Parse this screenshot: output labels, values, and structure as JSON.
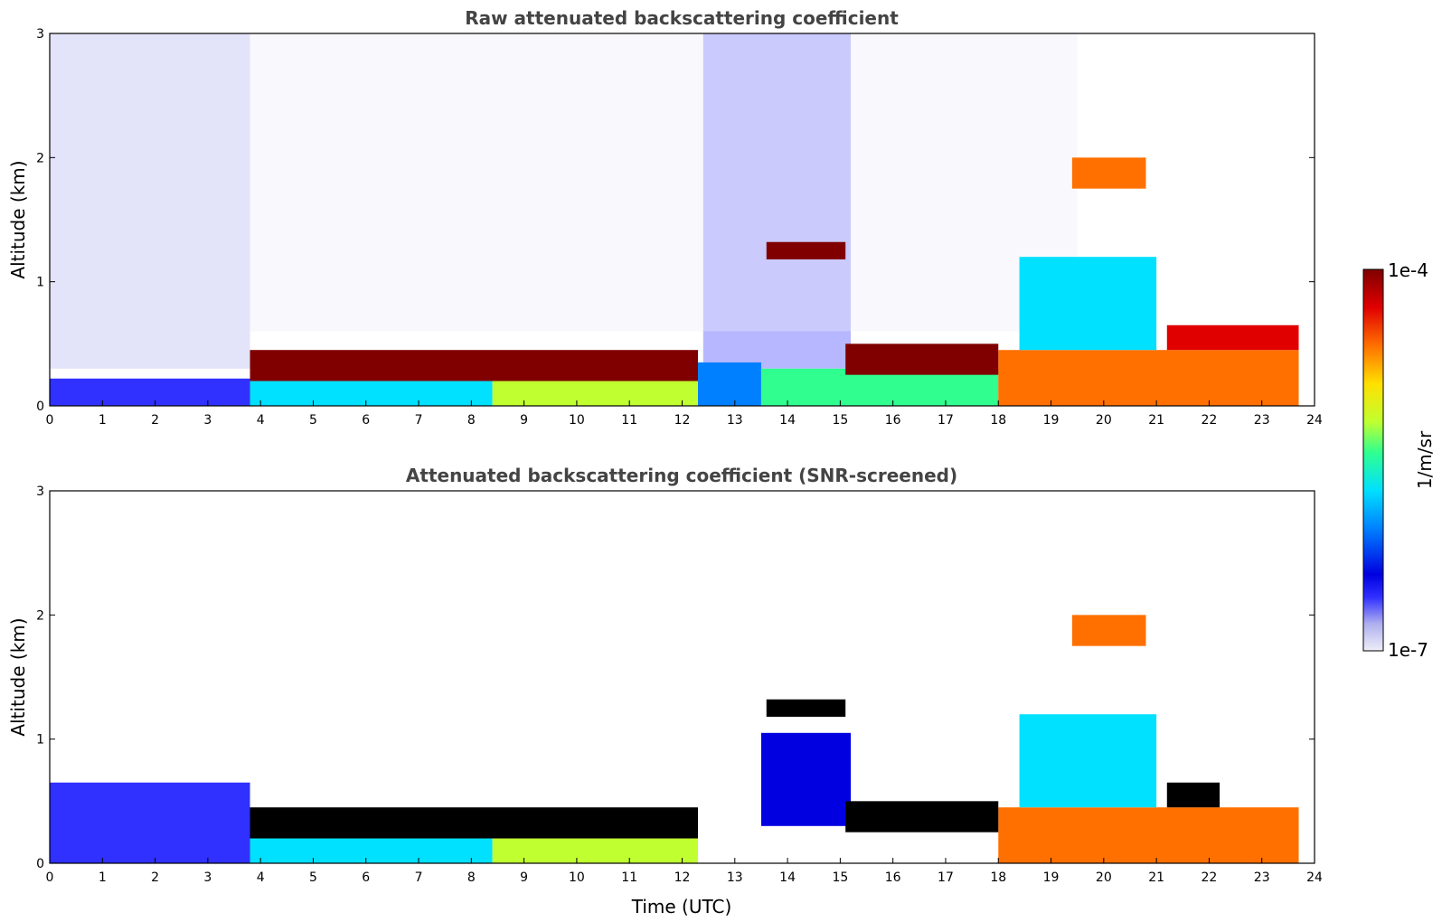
{
  "chart_data": [
    {
      "type": "heatmap",
      "title": "Raw attenuated backscattering coefficient",
      "xlabel": "",
      "ylabel": "Altitude (km)",
      "xlim": [
        0,
        24
      ],
      "ylim": [
        0,
        3
      ],
      "xticks": [
        "0",
        "1",
        "2",
        "3",
        "4",
        "5",
        "6",
        "7",
        "8",
        "9",
        "10",
        "11",
        "12",
        "13",
        "14",
        "15",
        "16",
        "17",
        "18",
        "19",
        "20",
        "21",
        "22",
        "23",
        "24"
      ],
      "yticks": [
        "0",
        "1",
        "2",
        "3"
      ],
      "features": [
        {
          "name": "noise",
          "t_start": 0,
          "t_end": 3.8,
          "alt_low": 0.3,
          "alt_high": 3.0,
          "value": 2e-07
        },
        {
          "name": "noise",
          "t_start": 12.4,
          "t_end": 15.2,
          "alt_low": 0.3,
          "alt_high": 3.0,
          "value": 3e-07
        },
        {
          "name": "noise",
          "t_start": 3.8,
          "t_end": 19.5,
          "alt_low": 0.6,
          "alt_high": 3.0,
          "value": 5e-08
        },
        {
          "name": "aerosol_layer",
          "t_start": 0,
          "t_end": 3.8,
          "alt_low": 0.0,
          "alt_high": 0.22,
          "value": 4e-07
        },
        {
          "name": "aerosol_layer",
          "t_start": 3.8,
          "t_end": 8.4,
          "alt_low": 0.0,
          "alt_high": 0.2,
          "value": 2e-06
        },
        {
          "name": "aerosol_layer",
          "t_start": 8.4,
          "t_end": 12.3,
          "alt_low": 0.0,
          "alt_high": 0.35,
          "value": 1e-05
        },
        {
          "name": "aerosol_layer",
          "t_start": 12.3,
          "t_end": 13.5,
          "alt_low": 0.0,
          "alt_high": 0.35,
          "value": 1.5e-06
        },
        {
          "name": "aerosol_layer",
          "t_start": 13.5,
          "t_end": 18.0,
          "alt_low": 0.0,
          "alt_high": 0.3,
          "value": 4e-06
        },
        {
          "name": "aerosol_layer",
          "t_start": 18.0,
          "t_end": 23.7,
          "alt_low": 0.0,
          "alt_high": 0.45,
          "value": 3e-05
        },
        {
          "name": "boundary_layer_top",
          "t_start": 3.8,
          "t_end": 12.3,
          "alt_low": 0.2,
          "alt_high": 0.45,
          "value": 0.0001
        },
        {
          "name": "boundary_layer_top",
          "t_start": 15.1,
          "t_end": 18.0,
          "alt_low": 0.25,
          "alt_high": 0.5,
          "value": 0.0001
        },
        {
          "name": "boundary_layer_top",
          "t_start": 21.2,
          "t_end": 23.7,
          "alt_low": 0.45,
          "alt_high": 0.65,
          "value": 6e-05
        },
        {
          "name": "cloud",
          "t_start": 13.6,
          "t_end": 15.1,
          "alt_low": 1.18,
          "alt_high": 1.32,
          "value": 0.0001
        },
        {
          "name": "cloud",
          "t_start": 19.4,
          "t_end": 20.8,
          "alt_low": 1.75,
          "alt_high": 2.0,
          "value": 3e-05
        },
        {
          "name": "convective_plumes",
          "t_start": 18.4,
          "t_end": 21.0,
          "alt_low": 0.45,
          "alt_high": 1.2,
          "value": 3e-06
        }
      ]
    },
    {
      "type": "heatmap",
      "title": "Attenuated backscattering coefficient (SNR-screened)",
      "xlabel": "Time (UTC)",
      "ylabel": "Altitude (km)",
      "xlim": [
        0,
        24
      ],
      "ylim": [
        0,
        3
      ],
      "xticks": [
        "0",
        "1",
        "2",
        "3",
        "4",
        "5",
        "6",
        "7",
        "8",
        "9",
        "10",
        "11",
        "12",
        "13",
        "14",
        "15",
        "16",
        "17",
        "18",
        "19",
        "20",
        "21",
        "22",
        "23",
        "24"
      ],
      "yticks": [
        "0",
        "1",
        "2",
        "3"
      ],
      "features": [
        {
          "name": "aerosol_layer",
          "t_start": 0,
          "t_end": 3.8,
          "alt_low": 0.0,
          "alt_high": 0.65,
          "value": 3e-07
        },
        {
          "name": "aerosol_layer",
          "t_start": 3.8,
          "t_end": 8.4,
          "alt_low": 0.0,
          "alt_high": 0.2,
          "value": 2e-06
        },
        {
          "name": "aerosol_layer",
          "t_start": 8.4,
          "t_end": 12.3,
          "alt_low": 0.0,
          "alt_high": 0.35,
          "value": 1e-05
        },
        {
          "name": "aerosol_layer",
          "t_start": 13.5,
          "t_end": 15.2,
          "alt_low": 0.3,
          "alt_high": 1.05,
          "value": 8e-07
        },
        {
          "name": "aerosol_layer",
          "t_start": 18.0,
          "t_end": 23.7,
          "alt_low": 0.0,
          "alt_high": 0.45,
          "value": 3e-05
        },
        {
          "name": "saturated_layer",
          "t_start": 3.8,
          "t_end": 12.3,
          "alt_low": 0.2,
          "alt_high": 0.45,
          "value": 0.0002
        },
        {
          "name": "saturated_layer",
          "t_start": 15.1,
          "t_end": 18.0,
          "alt_low": 0.25,
          "alt_high": 0.5,
          "value": 0.0002
        },
        {
          "name": "saturated_layer",
          "t_start": 21.2,
          "t_end": 22.2,
          "alt_low": 0.45,
          "alt_high": 0.65,
          "value": 0.0002
        },
        {
          "name": "saturated_cloud",
          "t_start": 13.6,
          "t_end": 15.1,
          "alt_low": 1.18,
          "alt_high": 1.32,
          "value": 0.0002
        },
        {
          "name": "cloud",
          "t_start": 19.4,
          "t_end": 20.8,
          "alt_low": 1.75,
          "alt_high": 2.0,
          "value": 3e-05
        },
        {
          "name": "convective_plumes",
          "t_start": 18.4,
          "t_end": 21.0,
          "alt_low": 0.45,
          "alt_high": 1.2,
          "value": 3e-06
        }
      ]
    }
  ],
  "colorbar": {
    "label": "1/m/sr",
    "max_label": "1e-4",
    "min_label": "1e-7",
    "scale": "log",
    "range": [
      1e-07,
      0.0001
    ],
    "colormap": [
      "#eeeef8",
      "#b0b0f0",
      "#3030ff",
      "#0000e0",
      "#0080ff",
      "#00e0ff",
      "#30ff90",
      "#c0ff30",
      "#ffe000",
      "#ff7000",
      "#e00000",
      "#800000"
    ]
  }
}
